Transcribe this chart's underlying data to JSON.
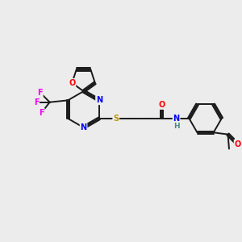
{
  "bg_color": "#ececec",
  "bond_color": "#1a1a1a",
  "bond_width": 1.4,
  "dbo": 0.055,
  "atom_colors": {
    "O": "#ff0000",
    "N": "#0000ee",
    "S": "#b8960c",
    "F": "#ee00ee",
    "H": "#4a8888",
    "C": "#1a1a1a"
  },
  "fs": 7.0,
  "fig_width": 3.0,
  "fig_height": 3.0
}
